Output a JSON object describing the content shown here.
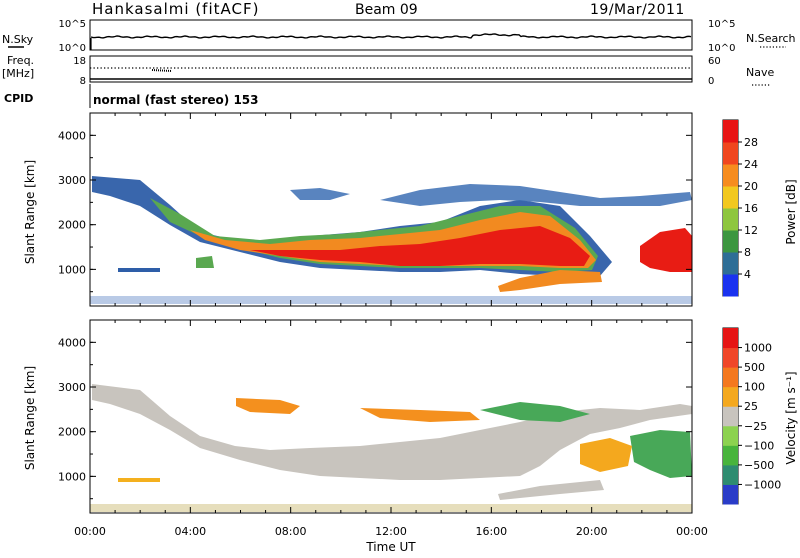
{
  "header": {
    "station": "Hankasalmi (fitACF)",
    "beam": "Beam 09",
    "date": "19/Mar/2011"
  },
  "nsky_panel": {
    "left_label": "N.Sky",
    "right_label": "N.Search",
    "left_ticks": [
      "10^5",
      "10^0"
    ],
    "right_ticks": [
      "10^5",
      "10^0"
    ]
  },
  "freq_panel": {
    "left_label_1": "Freq.",
    "left_label_2": "[MHz]",
    "right_label": "Nave",
    "left_ticks": [
      "18",
      "8"
    ],
    "right_ticks": [
      "60",
      "0"
    ]
  },
  "cpid": {
    "label": "CPID",
    "text": "normal (fast stereo) 153"
  },
  "chart_data": [
    {
      "type": "heatmap",
      "title": "",
      "ylabel": "Slant Range [km]",
      "yticks": [
        "1000",
        "2000",
        "3000",
        "4000"
      ],
      "ylim": [
        180,
        4500
      ],
      "colorbar": {
        "label": "Power [dB]",
        "ticks": [
          "4",
          "8",
          "12",
          "16",
          "20",
          "24",
          "28"
        ],
        "colors": [
          "#1a32f0",
          "#2e6e96",
          "#3c9640",
          "#8ec63e",
          "#f2c81e",
          "#f68c1e",
          "#f0461e",
          "#e81414"
        ]
      }
    },
    {
      "type": "heatmap",
      "title": "",
      "ylabel": "Slant Range [km]",
      "yticks": [
        "1000",
        "2000",
        "3000",
        "4000"
      ],
      "ylim": [
        180,
        4500
      ],
      "xlabel": "Time UT",
      "xticks": [
        "00:00",
        "04:00",
        "08:00",
        "12:00",
        "16:00",
        "20:00",
        "00:00"
      ],
      "colorbar": {
        "label": "Velocity [m s⁻¹]",
        "ticks": [
          "1000",
          "500",
          "100",
          "25",
          "−25",
          "−100",
          "−500",
          "−1000"
        ],
        "colors": [
          "#2a3cc8",
          "#2e8c70",
          "#48b43c",
          "#8cd250",
          "#c8c4be",
          "#f4a81e",
          "#f4781e",
          "#f04628",
          "#e61414"
        ]
      }
    }
  ]
}
